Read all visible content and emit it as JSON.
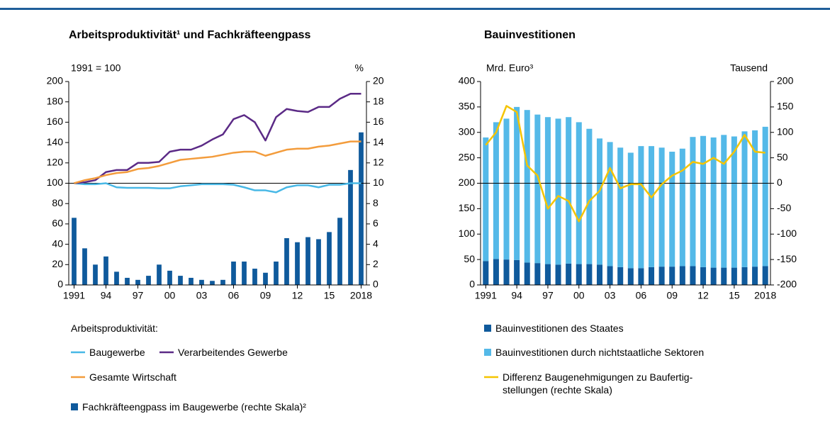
{
  "chart_data": [
    {
      "type": "combo",
      "title": "Arbeitsproduktivität¹ und Fachkräfteengpass",
      "y_label": "1991 = 100",
      "y2_label": "%",
      "legend_title": "Arbeitsproduktivität:",
      "categories": [
        "1991",
        null,
        null,
        "94",
        null,
        null,
        "97",
        null,
        null,
        "00",
        null,
        null,
        "03",
        null,
        null,
        "06",
        null,
        null,
        "09",
        null,
        null,
        "12",
        null,
        null,
        "15",
        null,
        null,
        "2018"
      ],
      "ylim": [
        0,
        200
      ],
      "yticks": [
        0,
        20,
        40,
        60,
        80,
        100,
        120,
        140,
        160,
        180,
        200
      ],
      "y2lim": [
        0,
        20
      ],
      "y2ticks": [
        0,
        2,
        4,
        6,
        8,
        10,
        12,
        14,
        16,
        18,
        20
      ],
      "reference_line": 100,
      "stacked": false,
      "series": [
        {
          "name": "Baugewerbe",
          "kind": "line",
          "color": "#48b8e6",
          "values": [
            100,
            99,
            99,
            100,
            96,
            95.5,
            95.5,
            95.5,
            95,
            95,
            97,
            98,
            99,
            99,
            99,
            98.5,
            96,
            93,
            93,
            91,
            96,
            98,
            98,
            96,
            98.5,
            98.5,
            100,
            100
          ]
        },
        {
          "name": "Verarbeitendes Gewerbe",
          "kind": "line",
          "color": "#5b2a86",
          "values": [
            100,
            101,
            103,
            111,
            113,
            113,
            120,
            120,
            121,
            131,
            133,
            133,
            137,
            143,
            148,
            163,
            167,
            160,
            142,
            165,
            173,
            171,
            170,
            175,
            175,
            183,
            188,
            188
          ]
        },
        {
          "name": "Gesamte Wirtschaft",
          "kind": "line",
          "color": "#f39c3c",
          "values": [
            100,
            103,
            105,
            108,
            110,
            111,
            114,
            115,
            117,
            120,
            123,
            124,
            125,
            126,
            128,
            130,
            131,
            131,
            127,
            130,
            133,
            134,
            134,
            136,
            137,
            139,
            141,
            141
          ]
        },
        {
          "name": "Fachkräfteengpass im Baugewerbe (rechte Skala)²",
          "kind": "bar",
          "axis": "y2",
          "color": "#0f5a9c",
          "values": [
            6.6,
            3.6,
            2.0,
            2.8,
            1.3,
            0.7,
            0.5,
            0.9,
            2.0,
            1.4,
            0.9,
            0.7,
            0.5,
            0.4,
            0.5,
            2.3,
            2.3,
            1.6,
            1.2,
            2.3,
            4.6,
            4.2,
            4.7,
            4.5,
            5.2,
            6.6,
            11.3,
            15.0
          ]
        }
      ]
    },
    {
      "type": "combo",
      "title": "Bauinvestitionen",
      "y_label": "Mrd. Euro³",
      "y2_label": "Tausend",
      "categories": [
        "1991",
        null,
        null,
        "94",
        null,
        null,
        "97",
        null,
        null,
        "00",
        null,
        null,
        "03",
        null,
        null,
        "06",
        null,
        null,
        "09",
        null,
        null,
        "12",
        null,
        null,
        "15",
        null,
        null,
        "2018"
      ],
      "ylim": [
        0,
        400
      ],
      "yticks": [
        0,
        50,
        100,
        150,
        200,
        250,
        300,
        350,
        400
      ],
      "y2lim": [
        -200,
        200
      ],
      "y2ticks": [
        -200,
        -150,
        -100,
        -50,
        0,
        50,
        100,
        150,
        200
      ],
      "reference_line": 200,
      "stacked": true,
      "series": [
        {
          "name": "Bauinvestitionen des Staates",
          "kind": "bar",
          "color": "#0f5a9c",
          "values": [
            47,
            51,
            50,
            49,
            44,
            43,
            41,
            40,
            42,
            41,
            41,
            40,
            37,
            35,
            33,
            33,
            35,
            36,
            36,
            37,
            37,
            35,
            34,
            34,
            34,
            35,
            36,
            37
          ]
        },
        {
          "name": "Bauinvestitionen durch nichtstaatliche Sektoren",
          "kind": "bar",
          "color": "#54b9e8",
          "values": [
            243,
            269,
            277,
            301,
            300,
            292,
            289,
            287,
            288,
            279,
            266,
            248,
            244,
            235,
            227,
            240,
            238,
            234,
            226,
            231,
            254,
            258,
            256,
            261,
            258,
            267,
            268,
            274
          ]
        },
        {
          "name": "Differenz Baugenehmigungen zu Baufertig-\nstellungen (rechte Skala)",
          "kind": "line",
          "axis": "y2",
          "color": "#f5c400",
          "values": [
            75,
            100,
            152,
            140,
            35,
            15,
            -50,
            -25,
            -35,
            -75,
            -35,
            -15,
            30,
            -10,
            -2,
            -2,
            -28,
            -2,
            15,
            25,
            42,
            38,
            50,
            38,
            62,
            95,
            62,
            60
          ]
        }
      ]
    }
  ]
}
